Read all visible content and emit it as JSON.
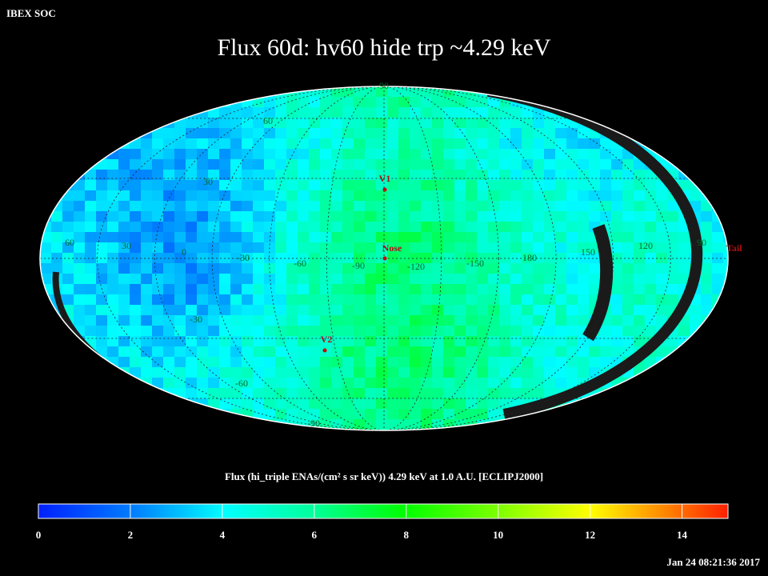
{
  "header": {
    "label": "IBEX SOC",
    "title": "Flux   60d: hv60 hide trp ~4.29 keV"
  },
  "map": {
    "latitude_labels": [
      "90",
      "60",
      "30",
      "-30",
      "-60",
      "-90"
    ],
    "longitude_labels": [
      "60",
      "30",
      "0",
      "-30",
      "-60",
      "-90",
      "-120",
      "-150",
      "180",
      "150",
      "120",
      "90"
    ],
    "markers": [
      "V1",
      "Nose",
      "V2",
      "Tail"
    ]
  },
  "colorbar": {
    "label": "Flux (hi_triple ENAs/(cm² s sr keV))  4.29 keV at 1.0 A.U. [ECLIPJ2000]",
    "lim": [
      0,
      15
    ],
    "ticks": [
      0,
      2,
      4,
      6,
      8,
      10,
      12,
      14
    ]
  },
  "footer": {
    "timestamp": "Jan 24 08:21:36 2017"
  }
}
